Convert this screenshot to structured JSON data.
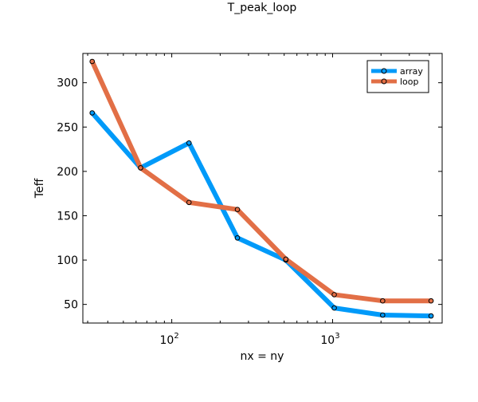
{
  "chart_data": {
    "type": "line",
    "title": "T_peak_loop",
    "xlabel": "nx = ny",
    "ylabel": "Teff",
    "xscale": "log10",
    "xlim": [
      28,
      4800
    ],
    "ylim": [
      29,
      333
    ],
    "x": [
      32,
      64,
      128,
      256,
      512,
      1024,
      2048,
      4096
    ],
    "x_ticks": [
      {
        "value": 100,
        "base": "10",
        "exp": "2"
      },
      {
        "value": 1000,
        "base": "10",
        "exp": "3"
      }
    ],
    "y_ticks": [
      50,
      100,
      150,
      200,
      250,
      300
    ],
    "grid": false,
    "legend_position": "top-right",
    "series": [
      {
        "name": "array",
        "color": "#009af9",
        "values": [
          266,
          204,
          232,
          125,
          100,
          46,
          38,
          37
        ]
      },
      {
        "name": "loop",
        "color": "#e26f46",
        "values": [
          324,
          204,
          165,
          157,
          101,
          61,
          54,
          54
        ]
      }
    ]
  }
}
